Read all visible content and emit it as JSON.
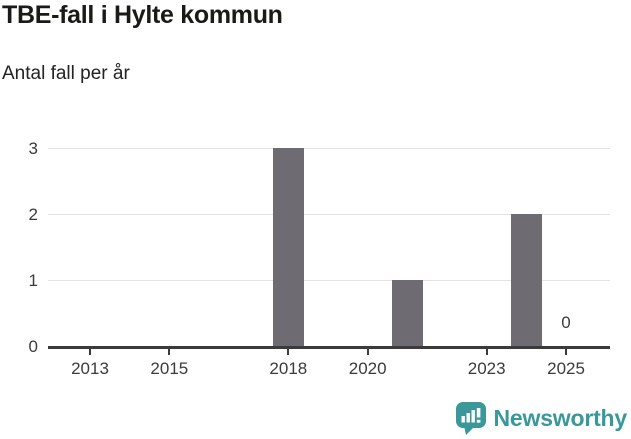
{
  "header": {
    "title": "TBE-fall i Hylte kommun",
    "subtitle": "Antal fall per år"
  },
  "chart_data": {
    "type": "bar",
    "title": "TBE-fall i Hylte kommun",
    "subtitle": "Antal fall per år",
    "xlabel": "",
    "ylabel": "Antal fall per år",
    "categories": [
      2012,
      2013,
      2014,
      2015,
      2016,
      2017,
      2018,
      2019,
      2020,
      2021,
      2022,
      2023,
      2024,
      2025
    ],
    "values": [
      0,
      0,
      0,
      0,
      0,
      0,
      3,
      0,
      0,
      1,
      0,
      0,
      2,
      0
    ],
    "ylim": [
      0,
      3
    ],
    "yticks": [
      0,
      1,
      2,
      3
    ],
    "xtick_labels": [
      "2013",
      "2015",
      "2018",
      "2020",
      "2023",
      "2025"
    ],
    "grid": true,
    "legend": "none",
    "bar_color": "#6e6c72",
    "annotations": [
      {
        "x": 2025,
        "y": 0,
        "text": "0"
      }
    ]
  },
  "footer": {
    "brand": "Newsworthy",
    "icon": "newsworthy-bar-chart-bubble-icon",
    "brand_color": "#3a989a"
  },
  "colors": {
    "background": "#ffffff",
    "title_text": "#191b17",
    "axis_text": "#3b3b3b",
    "gridline": "#e2e2e2",
    "bar": "#6e6c72",
    "brand_teal": "#3a989a"
  }
}
